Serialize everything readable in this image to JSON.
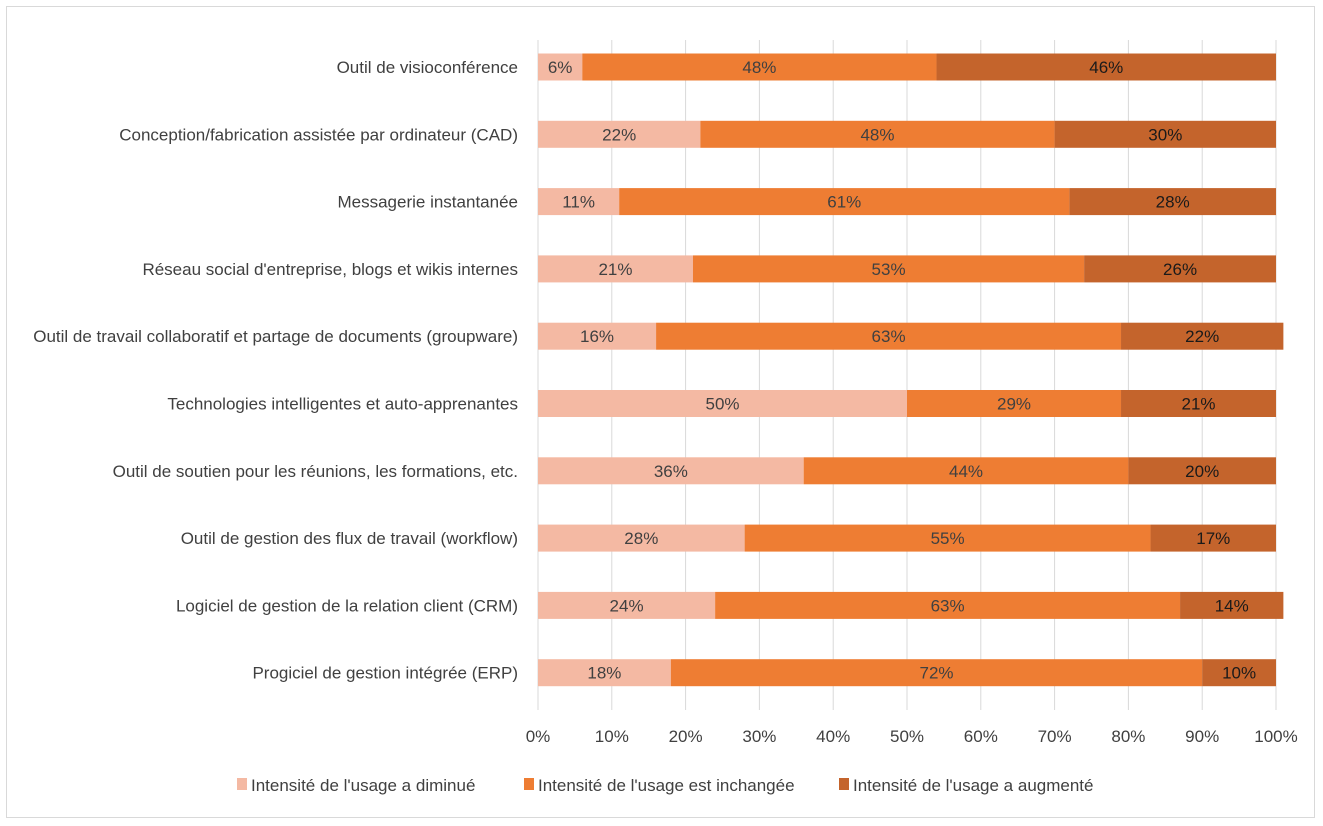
{
  "chart_data": {
    "type": "bar",
    "orientation": "horizontal",
    "stacked": "percent",
    "title": "",
    "xlabel": "",
    "ylabel": "",
    "xlim": [
      0,
      100
    ],
    "grid": true,
    "legend_position": "bottom",
    "categories": [
      "Outil de visioconférence",
      "Conception/fabrication assistée par ordinateur (CAD)",
      "Messagerie instantanée",
      "Réseau social d'entreprise, blogs et wikis internes",
      "Outil de travail collaboratif et partage de documents (groupware)",
      "Technologies intelligentes et auto-apprenantes",
      "Outil de soutien pour les réunions, les formations, etc.",
      "Outil de gestion des flux de travail (workflow)",
      "Logiciel de gestion de la relation client (CRM)",
      "Progiciel de gestion intégrée (ERP)"
    ],
    "series": [
      {
        "name": "Intensité de l'usage a diminué",
        "color": "#f4b9a3",
        "label_color": "#404040",
        "values": [
          6,
          22,
          11,
          21,
          16,
          50,
          36,
          28,
          24,
          18
        ],
        "labels": [
          "6%",
          "22%",
          "11%",
          "21%",
          "16%",
          "50%",
          "36%",
          "28%",
          "24%",
          "18%"
        ]
      },
      {
        "name": "Intensité de l'usage est inchangée",
        "color": "#ee7d33",
        "label_color": "#404040",
        "values": [
          48,
          48,
          61,
          53,
          63,
          29,
          44,
          55,
          63,
          72
        ],
        "labels": [
          "48%",
          "48%",
          "61%",
          "53%",
          "63%",
          "29%",
          "44%",
          "55%",
          "63%",
          "72%"
        ]
      },
      {
        "name": "Intensité de l'usage a augmenté",
        "color": "#c4642c",
        "label_color": "#1a1a1a",
        "values": [
          46,
          30,
          28,
          26,
          22,
          21,
          20,
          17,
          14,
          10
        ],
        "labels": [
          "46%",
          "30%",
          "28%",
          "26%",
          "22%",
          "21%",
          "20%",
          "17%",
          "14%",
          "10%"
        ]
      }
    ],
    "x_ticks": [
      "0%",
      "10%",
      "20%",
      "30%",
      "40%",
      "50%",
      "60%",
      "70%",
      "80%",
      "90%",
      "100%"
    ]
  }
}
